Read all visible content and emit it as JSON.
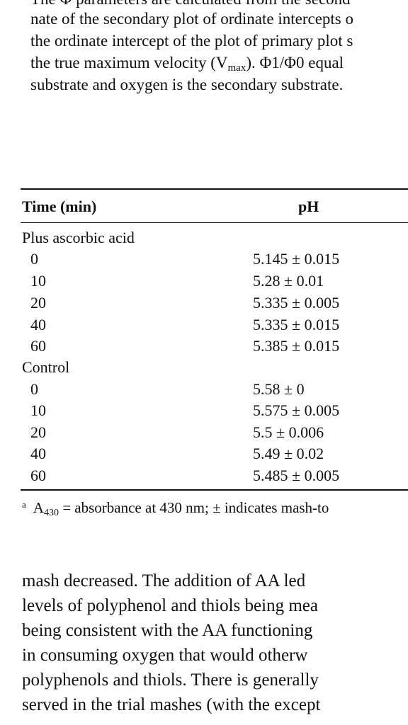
{
  "top_paragraph": {
    "line0": "The Φ parameters are calculated from the second",
    "line1": "nate of the secondary plot of ordinate intercepts o",
    "line2": "the ordinate intercept of the plot of primary plot s",
    "line3_pre": "the true maximum velocity (V",
    "line3_sub": "max",
    "line3_post": "). Φ1/Φ0 equal",
    "line4": "substrate and oxygen is the secondary substrate."
  },
  "table": {
    "headers": {
      "time": "Time (min)",
      "ph": "pH"
    },
    "groups": [
      {
        "label": "Plus ascorbic acid",
        "rows": [
          {
            "time": "0",
            "ph": "5.145 ± 0.015"
          },
          {
            "time": "10",
            "ph": "5.28 ± 0.01"
          },
          {
            "time": "20",
            "ph": "5.335 ± 0.005"
          },
          {
            "time": "40",
            "ph": "5.335 ± 0.015"
          },
          {
            "time": "60",
            "ph": "5.385 ± 0.015"
          }
        ]
      },
      {
        "label": "Control",
        "rows": [
          {
            "time": "0",
            "ph": "5.58 ± 0"
          },
          {
            "time": "10",
            "ph": "5.575 ± 0.005"
          },
          {
            "time": "20",
            "ph": "5.5 ± 0.006"
          },
          {
            "time": "40",
            "ph": "5.49 ± 0.02"
          },
          {
            "time": "60",
            "ph": "5.485 ± 0.005"
          }
        ]
      }
    ]
  },
  "footnote": {
    "mark": "a",
    "a": "A",
    "sub": "430",
    "text": " = absorbance at 430 nm; ± indicates mash-to"
  },
  "bottom_paragraph": [
    "mash decreased. The addition of AA led",
    "levels of polyphenol and thiols being mea",
    "being consistent with the AA functioning",
    "in consuming oxygen that would otherw",
    "polyphenols and thiols. There is generally",
    "served in the trial mashes (with the except"
  ]
}
